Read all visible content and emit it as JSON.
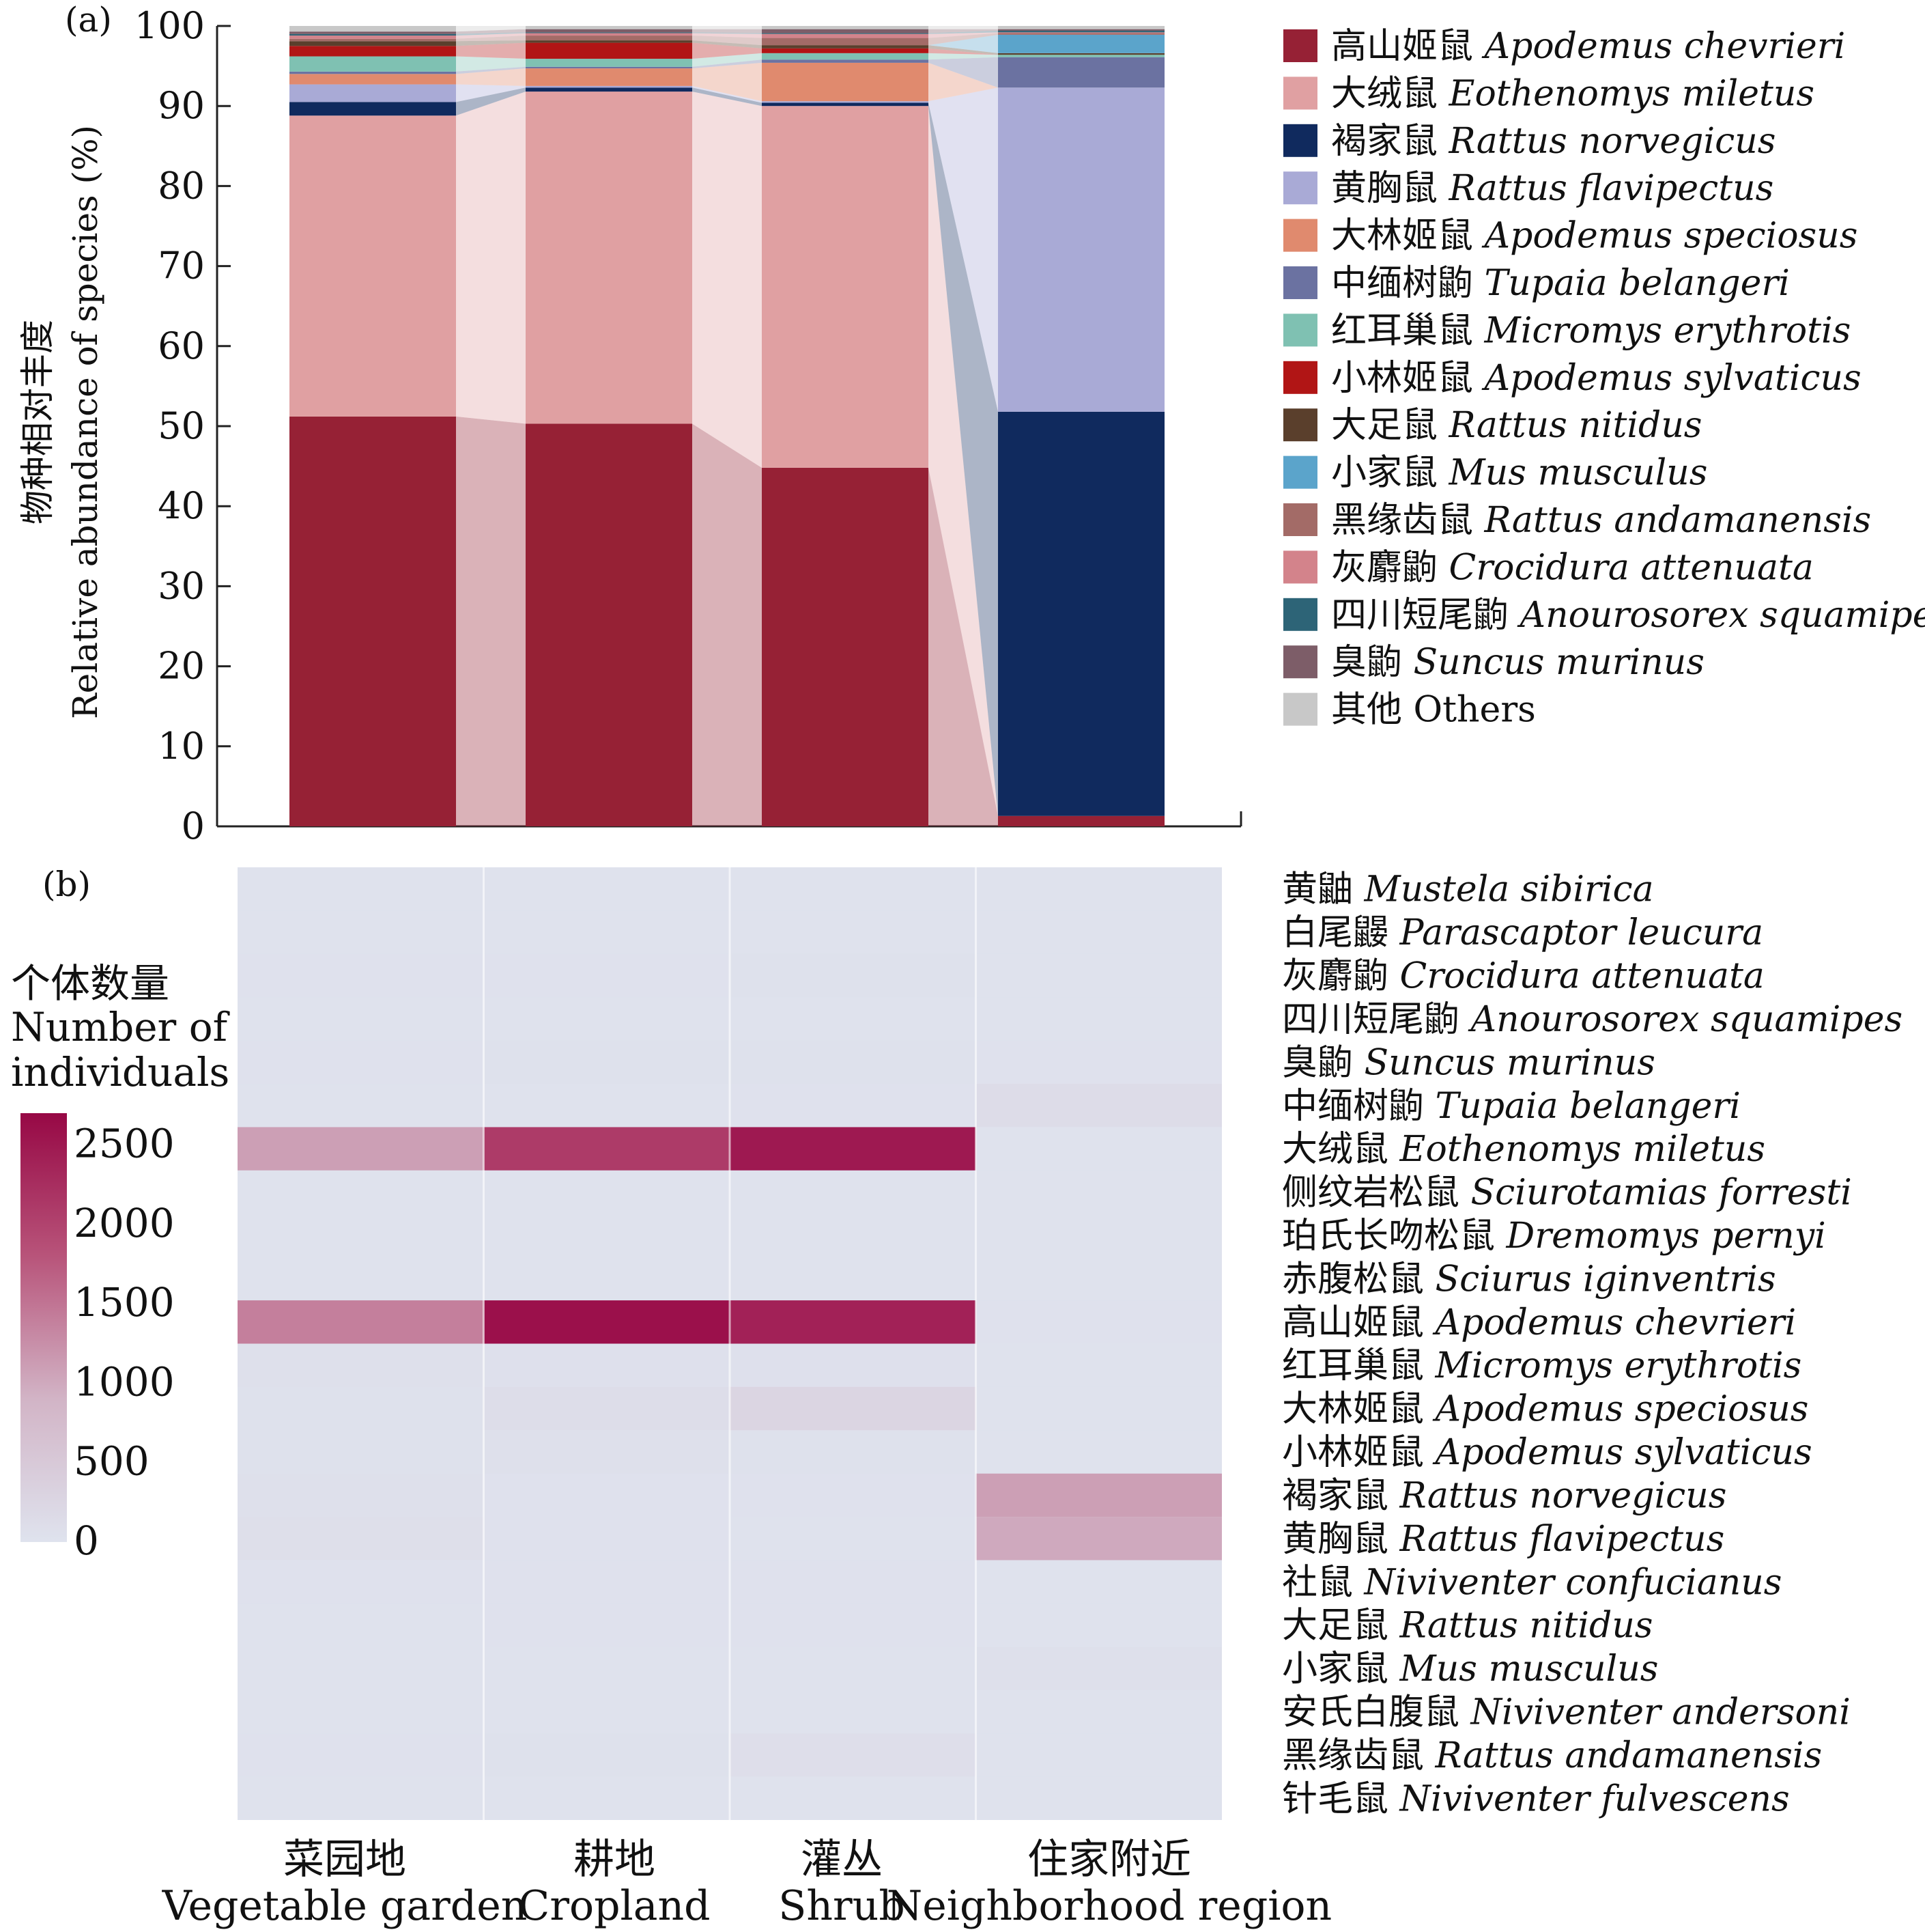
{
  "panel_a": {
    "label": "(a)",
    "ylabel_cn": "物种相对丰度",
    "ylabel_en": "Relative abundance of species (%)"
  },
  "panel_b": {
    "label": "(b)",
    "colorbar_title_cn": "个体数量",
    "colorbar_title_en_1": "Number of",
    "colorbar_title_en_2": "individuals"
  },
  "habitats": [
    {
      "cn": "菜园地",
      "en": "Vegetable garden"
    },
    {
      "cn": "耕地",
      "en": "Cropland"
    },
    {
      "cn": "灌丛",
      "en": "Shrub"
    },
    {
      "cn": "住家附近",
      "en": "Neighborhood region"
    }
  ],
  "chart_data": [
    {
      "type": "bar",
      "stacked": true,
      "ylabel": "物种相对丰度 Relative abundance of species (%)",
      "ylim": [
        0,
        100
      ],
      "yticks": [
        0,
        10,
        20,
        30,
        40,
        50,
        60,
        70,
        80,
        90,
        100
      ],
      "categories": [
        "菜园地",
        "耕地",
        "灌丛",
        "住家附近"
      ],
      "legend_position": "right",
      "series": [
        {
          "cn": "高山姬鼠",
          "sci": "Apodemus chevrieri",
          "color": "#962135",
          "values": [
            51.2,
            50.3,
            44.8,
            1.3
          ]
        },
        {
          "cn": "大绒鼠",
          "sci": "Eothenomys miletus",
          "color": "#e0a0a2",
          "values": [
            37.6,
            41.5,
            45.2,
            0.0
          ]
        },
        {
          "cn": "褐家鼠",
          "sci": "Rattus norvegicus",
          "color": "#102a5e",
          "values": [
            1.7,
            0.5,
            0.4,
            50.5
          ]
        },
        {
          "cn": "黄胸鼠",
          "sci": "Rattus flavipectus",
          "color": "#a9aad6",
          "values": [
            2.2,
            0.2,
            0.2,
            40.5
          ]
        },
        {
          "cn": "大林姬鼠",
          "sci": "Apodemus speciosus",
          "color": "#e08a6e",
          "values": [
            1.3,
            2.2,
            4.8,
            0.0
          ]
        },
        {
          "cn": "中缅树鼩",
          "sci": "Tupaia belangeri",
          "color": "#6b72a1",
          "values": [
            0.3,
            0.2,
            0.4,
            3.8
          ]
        },
        {
          "cn": "红耳巢鼠",
          "sci": "Micromys erythrotis",
          "color": "#7fc1b2",
          "values": [
            1.9,
            1.0,
            0.8,
            0.3
          ]
        },
        {
          "cn": "小林姬鼠",
          "sci": "Apodemus sylvaticus",
          "color": "#b11515",
          "values": [
            1.3,
            2.0,
            0.6,
            0.0
          ]
        },
        {
          "cn": "大足鼠",
          "sci": "Rattus nitidus",
          "color": "#5a3f2c",
          "values": [
            0.6,
            0.3,
            0.4,
            0.2
          ]
        },
        {
          "cn": "小家鼠",
          "sci": "Mus musculus",
          "color": "#5ba4cb",
          "values": [
            0.0,
            0.0,
            0.0,
            2.3
          ]
        },
        {
          "cn": "黑缘齿鼠",
          "sci": "Rattus andamanensis",
          "color": "#a36b67",
          "values": [
            0.3,
            0.6,
            0.9,
            0.2
          ]
        },
        {
          "cn": "灰麝鼩",
          "sci": "Crocidura attenuata",
          "color": "#d3838b",
          "values": [
            0.4,
            0.3,
            0.5,
            0.1
          ]
        },
        {
          "cn": "四川短尾鼩",
          "sci": "Anourosorex squamipes",
          "color": "#2d6477",
          "values": [
            0.2,
            0.1,
            0.1,
            0.2
          ]
        },
        {
          "cn": "臭鼩",
          "sci": "Suncus murinus",
          "color": "#7d5d68",
          "values": [
            0.3,
            0.4,
            0.5,
            0.2
          ]
        },
        {
          "cn": "其他",
          "sci": "",
          "en": "Others",
          "color": "#c8c8c8",
          "values": [
            0.7,
            0.4,
            0.4,
            0.4
          ]
        }
      ]
    },
    {
      "type": "heatmap",
      "colorbar_title": "个体数量 Number of individuals",
      "colorbar_ticks": [
        0,
        500,
        1000,
        1500,
        2000,
        2500
      ],
      "colorbar_range": [
        0,
        2700
      ],
      "colormap": [
        "#dfe3ee",
        "#d2b4c6",
        "#b8547a",
        "#970845"
      ],
      "columns": [
        "菜园地",
        "耕地",
        "灌丛",
        "住家附近"
      ],
      "rows": [
        {
          "cn": "黄鼬",
          "sci": "Mustela sibirica",
          "values": [
            20,
            20,
            20,
            20
          ]
        },
        {
          "cn": "白尾鼹",
          "sci": "Parascaptor leucura",
          "values": [
            20,
            20,
            20,
            20
          ]
        },
        {
          "cn": "灰麝鼩",
          "sci": "Crocidura attenuata",
          "values": [
            30,
            30,
            40,
            20
          ]
        },
        {
          "cn": "四川短尾鼩",
          "sci": "Anourosorex squamipes",
          "values": [
            20,
            20,
            20,
            20
          ]
        },
        {
          "cn": "臭鼩",
          "sci": "Suncus murinus",
          "values": [
            30,
            40,
            40,
            30
          ]
        },
        {
          "cn": "中缅树鼩",
          "sci": "Tupaia belangeri",
          "values": [
            20,
            20,
            30,
            130
          ]
        },
        {
          "cn": "大绒鼠",
          "sci": "Eothenomys miletus",
          "values": [
            1100,
            2100,
            2500,
            20
          ]
        },
        {
          "cn": "侧纹岩松鼠",
          "sci": "Sciurotamias forresti",
          "values": [
            20,
            20,
            20,
            20
          ]
        },
        {
          "cn": "珀氏长吻松鼠",
          "sci": "Dremomys pernyi",
          "values": [
            20,
            20,
            20,
            20
          ]
        },
        {
          "cn": "赤腹松鼠",
          "sci": "Sciurus iginventris",
          "values": [
            20,
            20,
            20,
            20
          ]
        },
        {
          "cn": "高山姬鼠",
          "sci": "Apodemus chevrieri",
          "values": [
            1400,
            2600,
            2400,
            30
          ]
        },
        {
          "cn": "红耳巢鼠",
          "sci": "Micromys erythrotis",
          "values": [
            60,
            50,
            50,
            20
          ]
        },
        {
          "cn": "大林姬鼠",
          "sci": "Apodemus speciosus",
          "values": [
            40,
            120,
            260,
            20
          ]
        },
        {
          "cn": "小林姬鼠",
          "sci": "Apodemus sylvaticus",
          "values": [
            40,
            60,
            40,
            20
          ]
        },
        {
          "cn": "褐家鼠",
          "sci": "Rattus norvegicus",
          "values": [
            60,
            30,
            30,
            1100
          ]
        },
        {
          "cn": "黄胸鼠",
          "sci": "Rattus flavipectus",
          "values": [
            80,
            30,
            20,
            1000
          ]
        },
        {
          "cn": "社鼠",
          "sci": "Niviventer confucianus",
          "values": [
            30,
            30,
            30,
            20
          ]
        },
        {
          "cn": "大足鼠",
          "sci": "Rattus nitidus",
          "values": [
            20,
            30,
            30,
            20
          ]
        },
        {
          "cn": "小家鼠",
          "sci": "Mus musculus",
          "values": [
            20,
            20,
            20,
            60
          ]
        },
        {
          "cn": "安氏白腹鼠",
          "sci": "Niviventer andersoni",
          "values": [
            20,
            20,
            20,
            20
          ]
        },
        {
          "cn": "黑缘齿鼠",
          "sci": "Rattus andamanensis",
          "values": [
            30,
            40,
            90,
            20
          ]
        },
        {
          "cn": "针毛鼠",
          "sci": "Niviventer fulvescens",
          "values": [
            20,
            20,
            20,
            20
          ]
        }
      ]
    }
  ]
}
